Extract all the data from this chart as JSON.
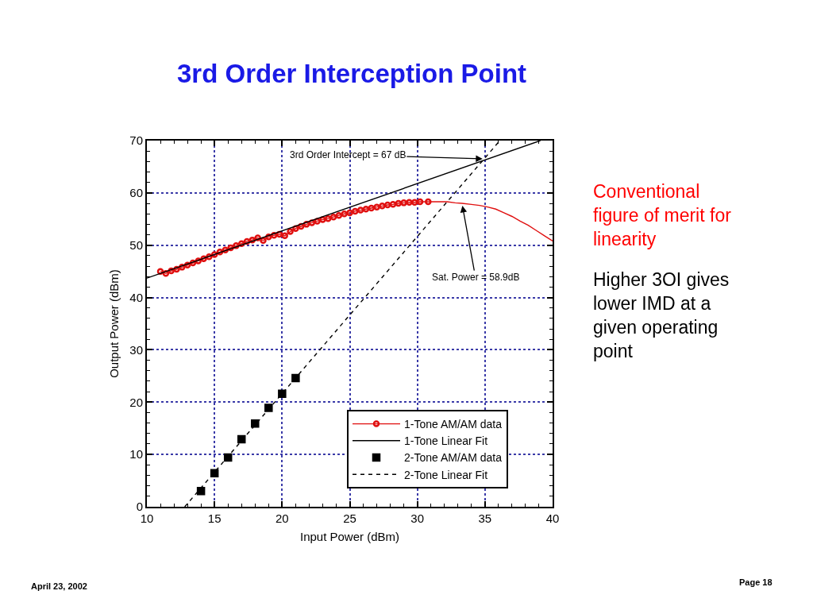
{
  "chart_data": {
    "type": "line",
    "title": "3rd Order Interception Point",
    "xlabel": "Input Power (dBm)",
    "ylabel": "Output Power (dBm)",
    "xlim": [
      10,
      40
    ],
    "ylim": [
      0,
      70
    ],
    "xticks": [
      10,
      {
        "value": 11,
        "label": null
      },
      {
        "value": 12,
        "label": null
      },
      {
        "value": 13,
        "label": null
      },
      {
        "value": 14,
        "label": null
      },
      15,
      {
        "value": 16,
        "label": null
      },
      {
        "value": 17,
        "label": null
      },
      {
        "value": 18,
        "label": null
      },
      {
        "value": 19,
        "label": null
      },
      20,
      {
        "value": 21,
        "label": null
      },
      {
        "value": 22,
        "label": null
      },
      {
        "value": 23,
        "label": null
      },
      {
        "value": 24,
        "label": null
      },
      25,
      {
        "value": 26,
        "label": null
      },
      {
        "value": 27,
        "label": null
      },
      {
        "value": 28,
        "label": null
      },
      {
        "value": 29,
        "label": null
      },
      30,
      {
        "value": 31,
        "label": null
      },
      {
        "value": 32,
        "label": null
      },
      {
        "value": 33,
        "label": null
      },
      {
        "value": 34,
        "label": null
      },
      35,
      {
        "value": 36,
        "label": null
      },
      {
        "value": 37,
        "label": null
      },
      {
        "value": 38,
        "label": null
      },
      {
        "value": 39,
        "label": null
      },
      40
    ],
    "yticks": [
      0,
      {
        "value": 2,
        "label": null
      },
      {
        "value": 4,
        "label": null
      },
      {
        "value": 6,
        "label": null
      },
      {
        "value": 8,
        "label": null
      },
      10,
      {
        "value": 12,
        "label": null
      },
      {
        "value": 14,
        "label": null
      },
      {
        "value": 16,
        "label": null
      },
      {
        "value": 18,
        "label": null
      },
      20,
      {
        "value": 22,
        "label": null
      },
      {
        "value": 24,
        "label": null
      },
      {
        "value": 26,
        "label": null
      },
      {
        "value": 28,
        "label": null
      },
      30,
      {
        "value": 32,
        "label": null
      },
      {
        "value": 34,
        "label": null
      },
      {
        "value": 36,
        "label": null
      },
      {
        "value": 38,
        "label": null
      },
      40,
      {
        "value": 42,
        "label": null
      },
      {
        "value": 44,
        "label": null
      },
      {
        "value": 46,
        "label": null
      },
      {
        "value": 48,
        "label": null
      },
      50,
      {
        "value": 52,
        "label": null
      },
      {
        "value": 54,
        "label": null
      },
      {
        "value": 56,
        "label": null
      },
      {
        "value": 58,
        "label": null
      },
      60,
      {
        "value": 62,
        "label": null
      },
      {
        "value": 64,
        "label": null
      },
      {
        "value": 66,
        "label": null
      },
      {
        "value": 68,
        "label": null
      },
      70
    ],
    "grid": true,
    "legend": "bottom right",
    "series": [
      {
        "color": "#e01010",
        "marker": "none",
        "line_style": "solid",
        "x": [
          30.8,
          31.5,
          32.2,
          32.8,
          33.3,
          34.0,
          34.6,
          35.2,
          35.8,
          36.4,
          37.0,
          37.6,
          38.2,
          38.8,
          39.4,
          40.0
        ],
        "values": [
          58.3,
          58.3,
          58.3,
          58.1,
          58.0,
          57.8,
          57.6,
          57.3,
          56.9,
          56.2,
          55.5,
          54.6,
          53.8,
          52.8,
          51.8,
          50.8
        ]
      },
      {
        "name": "1-Tone AM/AM data",
        "color": "#e01010",
        "marker": "circle",
        "line_style": "solid",
        "x": [
          11.0,
          11.4,
          11.8,
          12.2,
          12.6,
          13.0,
          13.4,
          13.8,
          14.2,
          14.6,
          15.0,
          15.4,
          15.8,
          16.2,
          16.6,
          17.0,
          17.4,
          17.8,
          18.2,
          18.6,
          19.0,
          19.4,
          19.8,
          20.2,
          20.6,
          21.0,
          21.4,
          21.8,
          22.2,
          22.6,
          23.0,
          23.4,
          23.8,
          24.2,
          24.6,
          25.0,
          25.4,
          25.8,
          26.2,
          26.6,
          27.0,
          27.4,
          27.8,
          28.2,
          28.6,
          29.0,
          29.4,
          29.8,
          30.2,
          30.8
        ],
        "values": [
          45.0,
          44.6,
          45.1,
          45.4,
          45.8,
          46.2,
          46.6,
          47.0,
          47.4,
          47.8,
          48.2,
          48.7,
          49.1,
          49.5,
          49.9,
          50.3,
          50.7,
          51.0,
          51.4,
          50.9,
          51.6,
          51.9,
          52.1,
          51.8,
          52.6,
          53.2,
          53.6,
          54.0,
          54.3,
          54.6,
          54.9,
          55.1,
          55.4,
          55.7,
          56.0,
          56.2,
          56.5,
          56.7,
          56.9,
          57.1,
          57.3,
          57.5,
          57.7,
          57.8,
          58.0,
          58.1,
          58.2,
          58.2,
          58.3,
          58.3
        ]
      },
      {
        "name": "1-Tone Linear Fit",
        "color": "#000000",
        "marker": "none",
        "line_style": "solid",
        "x": [
          10,
          39.1
        ],
        "values": [
          43.7,
          70
        ]
      },
      {
        "name": "2-Tone AM/AM data",
        "type": "scatter",
        "color": "#000000",
        "marker": "square",
        "x": [
          14,
          15,
          16,
          17,
          18,
          19,
          20,
          21
        ],
        "values": [
          3.0,
          6.4,
          9.4,
          12.9,
          15.9,
          18.9,
          21.6,
          24.6
        ]
      },
      {
        "name": "2-Tone Linear Fit",
        "color": "#000000",
        "marker": "none",
        "line_style": "dashed",
        "x": [
          12.8,
          36.1
        ],
        "values": [
          0,
          70
        ]
      }
    ],
    "annotations": [
      {
        "text": "3rd Order Intercept = 67 dB",
        "x": 35,
        "y": 66.5
      },
      {
        "text": "Sat. Power = 58.9dB",
        "x": 33.3,
        "y": 58.0
      },
      "Conventional\nfigure of merit for\nlinearity",
      "Higher 3OI gives\nlower IMD at a\ngiven operating\npoint",
      "April 23, 2002",
      "Page 18"
    ]
  }
}
